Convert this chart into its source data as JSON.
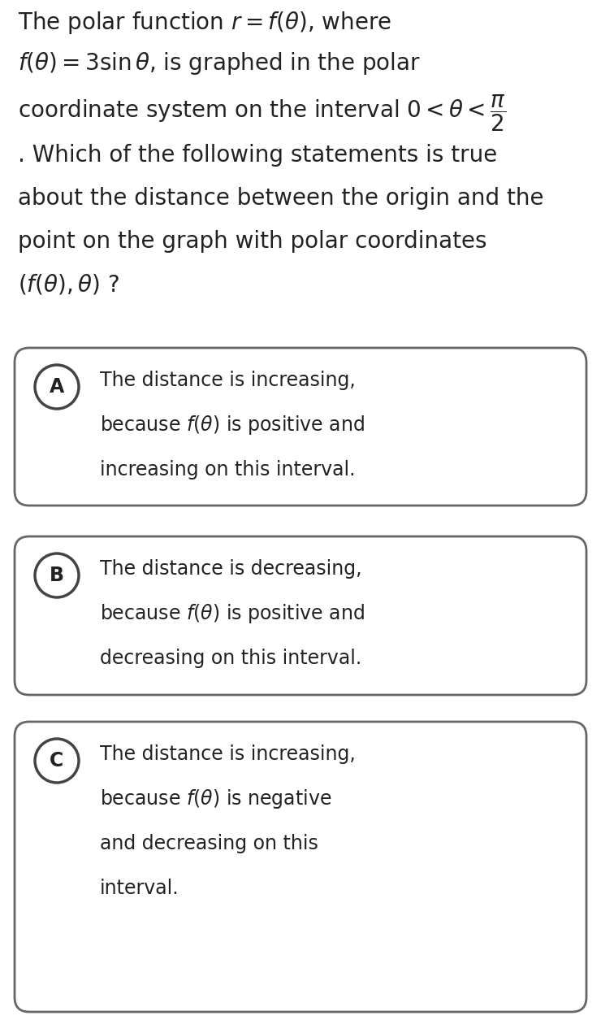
{
  "background_color": "#ffffff",
  "text_color": "#222222",
  "options": [
    {
      "label": "A",
      "lines": [
        "The distance is increasing,",
        "because $f(\\theta)$ is positive and",
        "increasing on this interval."
      ]
    },
    {
      "label": "B",
      "lines": [
        "The distance is decreasing,",
        "because $f(\\theta)$ is positive and",
        "decreasing on this interval."
      ]
    },
    {
      "label": "C",
      "lines": [
        "The distance is increasing,",
        "because $f(\\theta)$ is negative",
        "and decreasing on this",
        "interval."
      ]
    }
  ],
  "box_edge_color": "#666666",
  "box_face_color": "#ffffff",
  "circle_edge_color": "#444444",
  "circle_face_color": "#ffffff",
  "label_fontsize": 17,
  "option_fontsize": 17,
  "header_fontsize": 20,
  "figsize": [
    7.4,
    12.55
  ],
  "dpi": 100
}
